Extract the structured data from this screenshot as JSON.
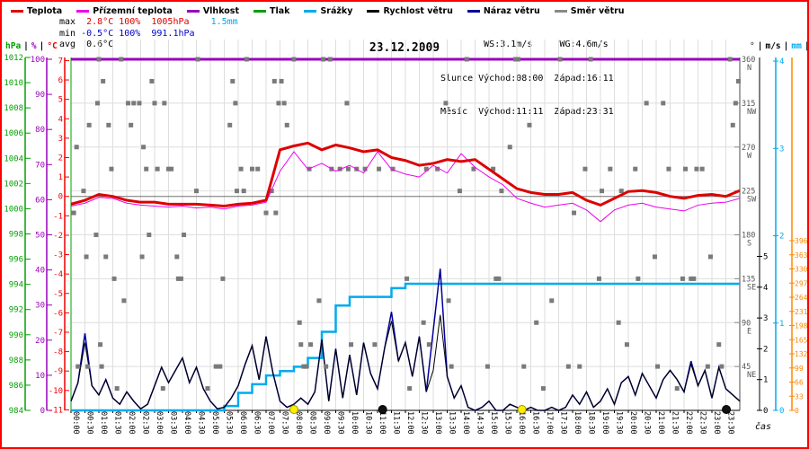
{
  "title": "23.12.2009",
  "legend": {
    "items": [
      {
        "label": "Teplota",
        "color": "#dd0000"
      },
      {
        "label": "Přízemní teplota",
        "color": "#ee00ee"
      },
      {
        "label": "Vlhkost",
        "color": "#9900bb"
      },
      {
        "label": "Tlak",
        "color": "#00a000"
      },
      {
        "label": "Srážky",
        "color": "#00aaee"
      },
      {
        "label": "Rychlost větru",
        "color": "#000000"
      },
      {
        "label": "Náraz větru",
        "color": "#000099"
      },
      {
        "label": "Směr větru",
        "color": "#888888"
      }
    ]
  },
  "stats_left": {
    "rows": [
      {
        "segments": [
          {
            "text": "max  ",
            "color": "#000000"
          },
          {
            "text": "2.8°C 100%  1005hPa",
            "color": "#dd0000"
          },
          {
            "text": "    ",
            "color": "#000000"
          },
          {
            "text": "1.5mm",
            "color": "#00aaee"
          }
        ]
      },
      {
        "segments": [
          {
            "text": "min ",
            "color": "#000000"
          },
          {
            "text": "-0.5°C 100%  991.1hPa",
            "color": "#0000cc"
          }
        ]
      },
      {
        "segments": [
          {
            "text": "avg  ",
            "color": "#000000"
          },
          {
            "text": "0.6°C",
            "color": "#000000"
          }
        ]
      }
    ]
  },
  "stats_right": {
    "row1": "        WS:3.1m/s     WG:4.6m/s",
    "row2": "Slunce Východ:08:00  Západ:16:11",
    "row3": "Měsíc  Východ:11:11  Západ:23:31"
  },
  "units_left": [
    {
      "text": "hPa",
      "color": "#00a000"
    },
    {
      "text": "|",
      "color": "#000000"
    },
    {
      "text": "%",
      "color": "#9900bb"
    },
    {
      "text": "|",
      "color": "#000000"
    },
    {
      "text": "°C",
      "color": "#ee0000"
    }
  ],
  "units_right": [
    {
      "text": "°",
      "color": "#555555"
    },
    {
      "text": "|",
      "color": "#000000"
    },
    {
      "text": "m/s",
      "color": "#000000"
    },
    {
      "text": "|",
      "color": "#000000"
    },
    {
      "text": "mm",
      "color": "#00aaee"
    },
    {
      "text": "|",
      "color": "#000000"
    },
    {
      "text": "W",
      "color": "#ff8800"
    }
  ],
  "chart_data": {
    "type": "line",
    "title": "23.12.2009",
    "xlabel": "čas",
    "x_hours_range": [
      0,
      24
    ],
    "grid": true,
    "axes": {
      "pressure_hpa": {
        "min": 984,
        "max": 1012,
        "step": 2,
        "color": "#00a000"
      },
      "humidity_pct": {
        "min": 0,
        "max": 100,
        "step": 10,
        "color": "#9900bb"
      },
      "temp_c": {
        "min": -11,
        "max": 7,
        "step": 1,
        "color": "#ee0000"
      },
      "direction_deg": {
        "color": "#888888",
        "ticks": [
          {
            "deg": 360,
            "label": "N"
          },
          {
            "deg": 315,
            "label": "NW"
          },
          {
            "deg": 270,
            "label": "W"
          },
          {
            "deg": 225,
            "label": "SW"
          },
          {
            "deg": 180,
            "label": "S"
          },
          {
            "deg": 135,
            "label": "SE"
          },
          {
            "deg": 90,
            "label": "E"
          },
          {
            "deg": 45,
            "label": "NE"
          }
        ]
      },
      "wind_ms": {
        "min": 0,
        "max": 5,
        "step": 1,
        "color": "#000000"
      },
      "precip_mm": {
        "min": 0,
        "max": 4,
        "step": 1,
        "color": "#00aaee"
      },
      "radiation_w": {
        "min": 0,
        "max": 396,
        "step": 33,
        "color": "#ff8800"
      }
    },
    "time_labels": [
      "00:00",
      "00:30",
      "01:00",
      "01:30",
      "02:00",
      "02:30",
      "03:00",
      "03:30",
      "04:00",
      "04:30",
      "05:00",
      "05:30",
      "06:00",
      "06:30",
      "07:00",
      "07:30",
      "08:00",
      "08:30",
      "09:00",
      "09:30",
      "10:00",
      "10:30",
      "11:00",
      "11:30",
      "12:00",
      "12:30",
      "13:00",
      "13:30",
      "14:00",
      "14:30",
      "15:00",
      "15:30",
      "16:00",
      "16:30",
      "17:00",
      "17:30",
      "18:00",
      "18:30",
      "19:00",
      "19:30",
      "20:00",
      "20:30",
      "21:00",
      "21:30",
      "22:00",
      "22:30",
      "23:00",
      "23:30"
    ],
    "series": [
      {
        "name": "Teplota",
        "unit": "°C",
        "color": "#dd0000",
        "width": 3,
        "interval_h": 0.5,
        "values": [
          -0.4,
          -0.2,
          0.1,
          0.0,
          -0.2,
          -0.3,
          -0.3,
          -0.4,
          -0.4,
          -0.4,
          -0.45,
          -0.5,
          -0.4,
          -0.35,
          -0.2,
          2.4,
          2.6,
          2.75,
          2.4,
          2.65,
          2.5,
          2.3,
          2.4,
          2.0,
          1.85,
          1.6,
          1.7,
          1.9,
          1.8,
          1.9,
          1.4,
          0.9,
          0.4,
          0.2,
          0.1,
          0.1,
          0.2,
          -0.2,
          -0.45,
          -0.1,
          0.25,
          0.3,
          0.2,
          0.0,
          -0.1,
          0.05,
          0.1,
          0.0,
          0.3
        ]
      },
      {
        "name": "Přízemní teplota",
        "unit": "°C",
        "color": "#ee00ee",
        "width": 1,
        "interval_h": 0.5,
        "values": [
          -0.5,
          -0.35,
          -0.05,
          -0.1,
          -0.35,
          -0.45,
          -0.5,
          -0.55,
          -0.5,
          -0.6,
          -0.55,
          -0.65,
          -0.5,
          -0.45,
          -0.3,
          1.3,
          2.3,
          1.4,
          1.7,
          1.3,
          1.6,
          1.2,
          2.3,
          1.4,
          1.15,
          1.0,
          1.6,
          1.2,
          2.2,
          1.5,
          1.0,
          0.6,
          -0.1,
          -0.35,
          -0.55,
          -0.45,
          -0.35,
          -0.7,
          -1.3,
          -0.7,
          -0.45,
          -0.35,
          -0.55,
          -0.65,
          -0.75,
          -0.45,
          -0.35,
          -0.3,
          -0.1
        ]
      },
      {
        "name": "Vlhkost",
        "unit": "%",
        "color": "#9900bb",
        "width": 3,
        "interval_h": 0.5,
        "values": [
          100,
          100,
          100,
          100,
          100,
          100,
          100,
          100,
          100,
          100,
          100,
          100,
          100,
          100,
          100,
          100,
          100,
          100,
          100,
          100,
          100,
          100,
          100,
          100,
          100,
          100,
          100,
          100,
          100,
          100,
          100,
          100,
          100,
          100,
          100,
          100,
          100,
          100,
          100,
          100,
          100,
          100,
          100,
          100,
          100,
          100,
          100,
          100,
          100
        ]
      },
      {
        "name": "Srážky (kumulativně)",
        "unit": "mm",
        "color": "#00aaee",
        "width": 2.5,
        "interval_h": 0.5,
        "style": "steps",
        "values": [
          0,
          0,
          0,
          0,
          0,
          0,
          0,
          0,
          0,
          0,
          0,
          0.05,
          0.2,
          0.3,
          0.4,
          0.45,
          0.5,
          0.6,
          0.9,
          1.2,
          1.3,
          1.3,
          1.3,
          1.4,
          1.45,
          1.45,
          1.45,
          1.45,
          1.45,
          1.45,
          1.45,
          1.45,
          1.45,
          1.45,
          1.45,
          1.45,
          1.45,
          1.45,
          1.45,
          1.45,
          1.45,
          1.45,
          1.45,
          1.45,
          1.45,
          1.45,
          1.45,
          1.45,
          1.45
        ]
      },
      {
        "name": "Rychlost větru",
        "unit": "m/s",
        "color": "#000000",
        "width": 1,
        "interval_h": 0.25,
        "values": [
          0.3,
          0.9,
          2.2,
          0.8,
          0.5,
          1.0,
          0.4,
          0.2,
          0.6,
          0.3,
          0.05,
          0.2,
          0.8,
          1.4,
          0.9,
          1.3,
          1.7,
          0.9,
          1.4,
          0.7,
          0.3,
          0.05,
          0.1,
          0.4,
          0.8,
          1.5,
          2.1,
          1.0,
          2.4,
          1.2,
          0.3,
          0.1,
          0.2,
          0.4,
          0.2,
          0.6,
          2.3,
          0.3,
          2.0,
          0.4,
          1.8,
          0.5,
          2.2,
          1.2,
          0.7,
          2.0,
          2.9,
          1.6,
          2.2,
          1.1,
          2.4,
          0.6,
          1.3,
          3.1,
          1.1,
          0.4,
          0.8,
          0.1,
          0.0,
          0.1,
          0.3,
          0.0,
          0.0,
          0.2,
          0.1,
          0.0,
          0.1,
          0.0,
          0.0,
          0.1,
          0.0,
          0.1,
          0.5,
          0.2,
          0.6,
          0.1,
          0.3,
          0.7,
          0.2,
          0.9,
          1.1,
          0.5,
          1.2,
          0.8,
          0.4,
          1.0,
          1.3,
          1.0,
          0.6,
          1.5,
          0.8,
          1.3,
          0.4,
          1.4,
          0.7,
          0.5,
          0.3
        ]
      },
      {
        "name": "Náraz větru",
        "unit": "m/s",
        "color": "#000099",
        "width": 1.5,
        "interval_h": 0.25,
        "values": [
          0.3,
          0.9,
          2.5,
          0.8,
          0.5,
          1.0,
          0.4,
          0.2,
          0.6,
          0.3,
          0.05,
          0.2,
          0.8,
          1.4,
          0.9,
          1.3,
          1.7,
          0.9,
          1.4,
          0.7,
          0.3,
          0.05,
          0.1,
          0.4,
          0.8,
          1.5,
          2.1,
          1.0,
          2.4,
          1.2,
          0.3,
          0.1,
          0.2,
          0.4,
          0.2,
          0.6,
          2.3,
          0.3,
          2.0,
          0.4,
          1.8,
          0.5,
          2.2,
          1.2,
          0.7,
          2.0,
          3.2,
          1.6,
          2.2,
          1.1,
          2.4,
          0.6,
          2.6,
          4.6,
          1.1,
          0.4,
          0.8,
          0.1,
          0.0,
          0.1,
          0.3,
          0.0,
          0.0,
          0.2,
          0.1,
          0.0,
          0.1,
          0.0,
          0.0,
          0.1,
          0.0,
          0.1,
          0.5,
          0.2,
          0.6,
          0.1,
          0.3,
          0.7,
          0.2,
          0.9,
          1.1,
          0.5,
          1.2,
          0.8,
          0.4,
          1.0,
          1.3,
          1.0,
          0.6,
          1.6,
          0.8,
          1.3,
          0.4,
          1.4,
          0.7,
          0.5,
          0.3
        ]
      }
    ],
    "wind_direction_points": [
      [
        0.1,
        202.5
      ],
      [
        0.2,
        270
      ],
      [
        0.25,
        45
      ],
      [
        0.45,
        225
      ],
      [
        0.55,
        157.5
      ],
      [
        0.6,
        45
      ],
      [
        0.65,
        292.5
      ],
      [
        0.9,
        180
      ],
      [
        0.95,
        315
      ],
      [
        1.0,
        360
      ],
      [
        1.05,
        67.5
      ],
      [
        1.1,
        45
      ],
      [
        1.15,
        337.5
      ],
      [
        1.25,
        157.5
      ],
      [
        1.35,
        292.5
      ],
      [
        1.45,
        247.5
      ],
      [
        1.55,
        135
      ],
      [
        1.65,
        22.5
      ],
      [
        1.8,
        360
      ],
      [
        1.9,
        112.5
      ],
      [
        2.05,
        315
      ],
      [
        2.15,
        292.5
      ],
      [
        2.25,
        315
      ],
      [
        2.45,
        315
      ],
      [
        2.55,
        157.5
      ],
      [
        2.6,
        270
      ],
      [
        2.7,
        247.5
      ],
      [
        2.8,
        180
      ],
      [
        2.9,
        337.5
      ],
      [
        3.0,
        315
      ],
      [
        3.1,
        247.5
      ],
      [
        3.3,
        22.5
      ],
      [
        3.35,
        315
      ],
      [
        3.5,
        247.5
      ],
      [
        3.6,
        247.5
      ],
      [
        3.8,
        157.5
      ],
      [
        3.85,
        135
      ],
      [
        3.95,
        135
      ],
      [
        4.05,
        180
      ],
      [
        4.5,
        225
      ],
      [
        4.55,
        360
      ],
      [
        4.9,
        22.5
      ],
      [
        5.2,
        45
      ],
      [
        5.35,
        45
      ],
      [
        5.45,
        135
      ],
      [
        5.7,
        292.5
      ],
      [
        5.8,
        337.5
      ],
      [
        5.9,
        315
      ],
      [
        5.95,
        225
      ],
      [
        6.1,
        247.5
      ],
      [
        6.2,
        225
      ],
      [
        6.3,
        360
      ],
      [
        6.5,
        247.5
      ],
      [
        6.7,
        247.5
      ],
      [
        7.0,
        202.5
      ],
      [
        7.2,
        225
      ],
      [
        7.3,
        337.5
      ],
      [
        7.35,
        202.5
      ],
      [
        7.45,
        315
      ],
      [
        7.55,
        337.5
      ],
      [
        7.65,
        315
      ],
      [
        7.75,
        292.5
      ],
      [
        8.0,
        360
      ],
      [
        8.2,
        90
      ],
      [
        8.25,
        67.5
      ],
      [
        8.35,
        45
      ],
      [
        8.45,
        45
      ],
      [
        8.55,
        247.5
      ],
      [
        8.6,
        67.5
      ],
      [
        8.9,
        112.5
      ],
      [
        9.05,
        360
      ],
      [
        9.15,
        45
      ],
      [
        9.3,
        360
      ],
      [
        9.35,
        247.5
      ],
      [
        9.65,
        247.5
      ],
      [
        9.9,
        315
      ],
      [
        9.95,
        247.5
      ],
      [
        10.05,
        67.5
      ],
      [
        10.25,
        247.5
      ],
      [
        10.55,
        247.5
      ],
      [
        10.9,
        67.5
      ],
      [
        11.05,
        247.5
      ],
      [
        11.55,
        247.5
      ],
      [
        12.05,
        135
      ],
      [
        12.15,
        22.5
      ],
      [
        12.65,
        90
      ],
      [
        12.75,
        247.5
      ],
      [
        12.85,
        67.5
      ],
      [
        13.15,
        247.5
      ],
      [
        13.45,
        315
      ],
      [
        13.55,
        112.5
      ],
      [
        13.65,
        45
      ],
      [
        13.95,
        225
      ],
      [
        14.2,
        360
      ],
      [
        14.45,
        247.5
      ],
      [
        14.95,
        45
      ],
      [
        15.15,
        247.5
      ],
      [
        15.25,
        135
      ],
      [
        15.35,
        135
      ],
      [
        15.45,
        225
      ],
      [
        15.75,
        270
      ],
      [
        15.95,
        360
      ],
      [
        16.05,
        360
      ],
      [
        16.25,
        45
      ],
      [
        16.45,
        292.5
      ],
      [
        16.7,
        90
      ],
      [
        16.95,
        22.5
      ],
      [
        17.25,
        112.5
      ],
      [
        17.55,
        360
      ],
      [
        17.85,
        45
      ],
      [
        18.05,
        202.5
      ],
      [
        18.25,
        45
      ],
      [
        18.45,
        247.5
      ],
      [
        18.65,
        360
      ],
      [
        18.95,
        135
      ],
      [
        19.05,
        225
      ],
      [
        19.35,
        247.5
      ],
      [
        19.65,
        90
      ],
      [
        19.75,
        225
      ],
      [
        19.95,
        67.5
      ],
      [
        20.25,
        247.5
      ],
      [
        20.35,
        135
      ],
      [
        20.65,
        315
      ],
      [
        20.95,
        157.5
      ],
      [
        21.05,
        45
      ],
      [
        21.25,
        315
      ],
      [
        21.45,
        247.5
      ],
      [
        21.75,
        22.5
      ],
      [
        21.95,
        135
      ],
      [
        22.05,
        247.5
      ],
      [
        22.25,
        135
      ],
      [
        22.35,
        135
      ],
      [
        22.45,
        247.5
      ],
      [
        22.65,
        247.5
      ],
      [
        22.85,
        45
      ],
      [
        22.95,
        157.5
      ],
      [
        23.25,
        67.5
      ],
      [
        23.35,
        45
      ],
      [
        23.65,
        360
      ],
      [
        23.75,
        292.5
      ],
      [
        23.85,
        315
      ],
      [
        23.95,
        337.5
      ]
    ],
    "events": {
      "sunrise": {
        "time": "08:00",
        "hour": 8.0,
        "color": "#ffee00"
      },
      "sunset": {
        "time": "16:11",
        "hour": 16.183,
        "color": "#ffee00"
      },
      "moonrise": {
        "time": "11:11",
        "hour": 11.183,
        "color": "#111111"
      },
      "moonset": {
        "time": "23:31",
        "hour": 23.517,
        "color": "#111111"
      }
    }
  }
}
